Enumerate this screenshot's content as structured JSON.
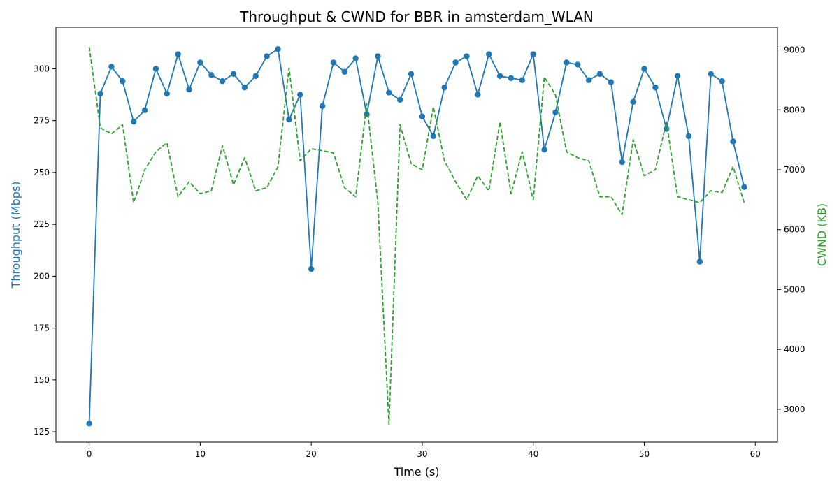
{
  "chart_data": {
    "type": "line",
    "title": "Throughput & CWND for BBR in amsterdam_WLAN",
    "xlabel": "Time (s)",
    "ylabel_left": "Throughput (Mbps)",
    "ylabel_right": "CWND (KB)",
    "xlim": [
      -3,
      62
    ],
    "ylim_left": [
      120,
      320
    ],
    "ylim_right": [
      2450,
      9380
    ],
    "x_ticks": [
      0,
      10,
      20,
      30,
      40,
      50,
      60
    ],
    "y_left_ticks": [
      125,
      150,
      175,
      200,
      225,
      250,
      275,
      300
    ],
    "y_right_ticks": [
      3000,
      4000,
      5000,
      6000,
      7000,
      8000,
      9000
    ],
    "x": [
      0,
      1,
      2,
      3,
      4,
      5,
      6,
      7,
      8,
      9,
      10,
      11,
      12,
      13,
      14,
      15,
      16,
      17,
      18,
      19,
      20,
      21,
      22,
      23,
      24,
      25,
      26,
      27,
      28,
      29,
      30,
      31,
      32,
      33,
      34,
      35,
      36,
      37,
      38,
      39,
      40,
      41,
      42,
      43,
      44,
      45,
      46,
      47,
      48,
      49,
      50,
      51,
      52,
      53,
      54,
      55,
      56,
      57,
      58,
      59
    ],
    "series": [
      {
        "axis": "left",
        "color": "#1f77b4",
        "style": "solid-with-markers",
        "values": [
          129,
          288,
          301,
          294,
          274.5,
          280,
          300,
          288,
          307,
          290,
          303,
          297,
          294,
          297.5,
          291,
          296.5,
          306,
          309.5,
          275.5,
          287.5,
          203.5,
          282,
          303,
          298.5,
          305,
          278,
          306,
          288.5,
          285,
          297.5,
          277,
          267.5,
          291,
          303,
          306,
          287.5,
          307,
          296.5,
          295.5,
          294.5,
          307,
          261,
          279,
          303,
          302,
          294.5,
          297.5,
          293.5,
          255,
          284,
          300,
          291,
          271,
          296.5,
          267.5,
          207,
          297.5,
          294,
          265,
          243
        ]
      },
      {
        "axis": "right",
        "color": "#2ca02c",
        "style": "dashed",
        "values": [
          9050,
          7700,
          7600,
          7750,
          6450,
          7000,
          7300,
          7450,
          6550,
          6800,
          6600,
          6650,
          7400,
          6750,
          7200,
          6650,
          6700,
          7050,
          8700,
          7150,
          7350,
          7320,
          7280,
          6700,
          6550,
          8100,
          6450,
          2750,
          7750,
          7100,
          7000,
          8050,
          7150,
          6800,
          6500,
          6900,
          6650,
          7800,
          6600,
          7300,
          6500,
          8550,
          8250,
          7300,
          7200,
          7150,
          6550,
          6550,
          6250,
          7500,
          6900,
          7000,
          7800,
          6550,
          6500,
          6450,
          6650,
          6620,
          7050,
          6450
        ]
      }
    ],
    "colors": {
      "left_axis": "#1f77b4",
      "right_axis": "#2ca02c"
    }
  }
}
